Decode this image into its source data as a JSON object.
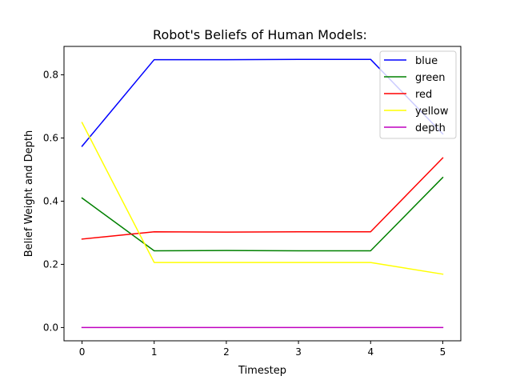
{
  "chart_data": {
    "type": "line",
    "title": "Robot's Beliefs of Human Models:",
    "xlabel": "Timestep",
    "ylabel": "Belief Weight and Depth",
    "x": [
      0,
      1,
      2,
      3,
      4,
      5
    ],
    "xlim": [
      -0.25,
      5.25
    ],
    "ylim": [
      -0.042,
      0.89
    ],
    "xticks": [
      "0",
      "1",
      "2",
      "3",
      "4",
      "5"
    ],
    "yticks": [
      "0.0",
      "0.2",
      "0.4",
      "0.6",
      "0.8"
    ],
    "grid": false,
    "legend_position": "top-right",
    "series": [
      {
        "name": "blue",
        "color": "#0000ff",
        "values": [
          0.574,
          0.848,
          0.848,
          0.849,
          0.849,
          0.613
        ]
      },
      {
        "name": "green",
        "color": "#008000",
        "values": [
          0.41,
          0.243,
          0.244,
          0.243,
          0.243,
          0.475
        ]
      },
      {
        "name": "red",
        "color": "#ff0000",
        "values": [
          0.28,
          0.303,
          0.302,
          0.303,
          0.303,
          0.537
        ]
      },
      {
        "name": "yellow",
        "color": "#ffff00",
        "values": [
          0.649,
          0.206,
          0.206,
          0.206,
          0.206,
          0.169
        ]
      },
      {
        "name": "depth",
        "color": "#bf00bf",
        "values": [
          0.0,
          0.0,
          0.0,
          0.0,
          0.0,
          0.0
        ]
      }
    ]
  }
}
